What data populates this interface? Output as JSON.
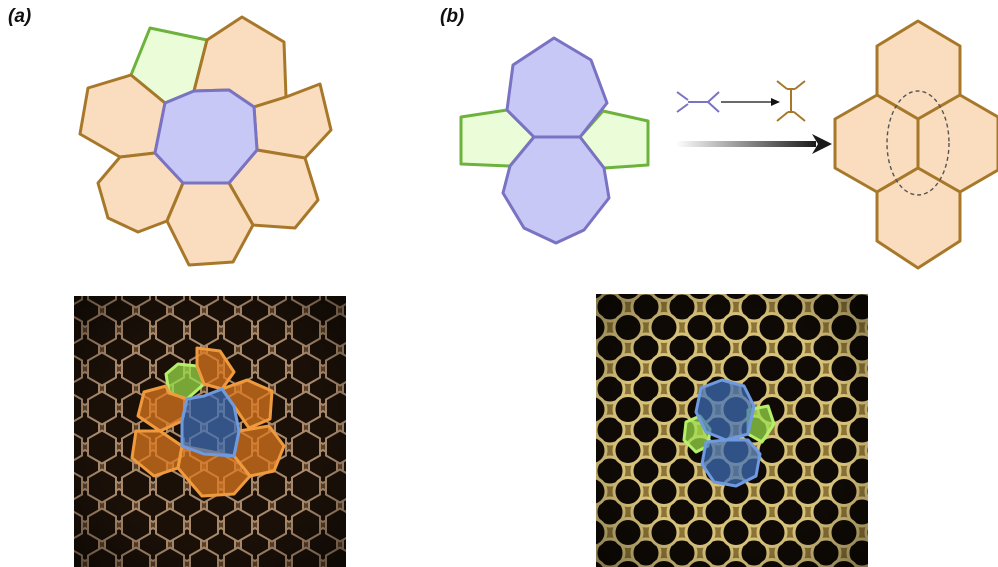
{
  "panels": [
    {
      "id": "a",
      "label": "(a)"
    },
    {
      "id": "b",
      "label": "(b)"
    }
  ],
  "colors": {
    "orange_fill": "#F9DDBE",
    "orange_stroke": "#A8782A",
    "purple_fill": "#C8C8F7",
    "purple_stroke": "#7A72C2",
    "green_fill": "#EAFDD8",
    "green_stroke": "#6DB23C",
    "photo_orange": "#E07A1E",
    "photo_blue": "#3F6FB8",
    "photo_green": "#9BE04A",
    "comb_dark": "#140c06",
    "comb_wall_a": "#8a6a4a",
    "comb_wall_b": "#b9a15e"
  },
  "icons": [
    "t1-transition-icon-before",
    "t1-transition-icon-after",
    "arrow-right-icon",
    "gradient-arrow-icon"
  ]
}
